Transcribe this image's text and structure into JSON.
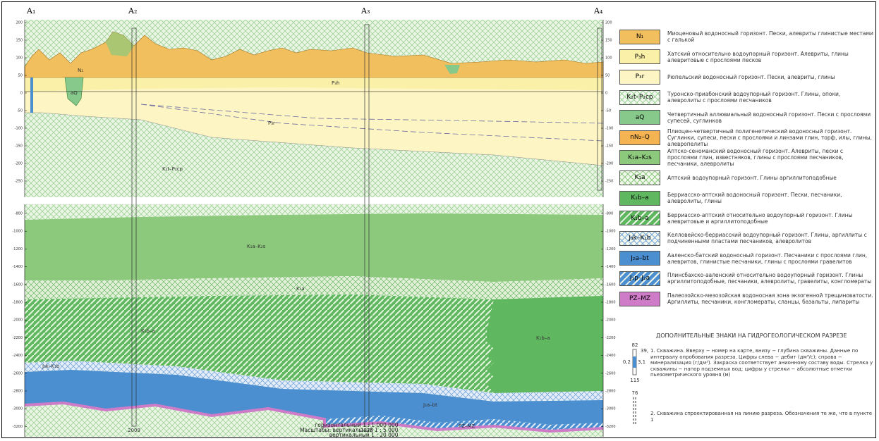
{
  "section": {
    "points": [
      "A₁",
      "A₂",
      "A₃",
      "A₄"
    ],
    "top_ticks": [
      "200",
      "150",
      "100",
      "50",
      "0",
      "-50",
      "-100",
      "-150",
      "-200",
      "-250"
    ],
    "bottom_ticks": [
      "-800",
      "-1000",
      "-1200",
      "-1400",
      "-1600",
      "-1800",
      "-2000",
      "-2200",
      "-2400",
      "-2600",
      "-2800",
      "-3000",
      "-3200"
    ],
    "well_depths": [
      "2009",
      "3275"
    ],
    "scale": [
      "горизонтальный 1 : 1 000 000",
      "Масштабы: вертикальный 1 : 5 000",
      "вертикальный 1 : 20 000"
    ]
  },
  "legend": {
    "items": [
      {
        "code": "N₁",
        "text": "Миоценовый водоносный горизонт. Пески, алевриты глинистые местами с галькой",
        "color": "#f2bf5e",
        "pattern": "solid"
      },
      {
        "code": "P₃h",
        "text": "Хатский относительно водоупорный горизонт. Алевриты, глины алевритовые с прослоями песков",
        "color": "#fbf0a8",
        "pattern": "solid"
      },
      {
        "code": "P₃r",
        "text": "Рюпельский водоносный горизонт. Пески, алевриты, глины",
        "color": "#fdf6c4",
        "pattern": "solid"
      },
      {
        "code": "K₂t–P₂cp",
        "text": "Туронско-приабонский водоупорный горизонт. Глины, опоки, алевролиты с прослоями песчаников",
        "color": "#9fd49a",
        "pattern": "cross"
      },
      {
        "code": "aQ",
        "text": "Четвертичный аллювиальный водоносный горизонт. Пески с прослоями супесей, суглинков",
        "color": "#86c98a",
        "pattern": "solid"
      },
      {
        "code": "nN₂–Q",
        "text": "Плиоцен-четвертичный полигенетический водоносный горизонт. Суглинки, супеси, пески с прослоями и линзами глин, торф, илы, глины, алевропелиты",
        "color": "#f5b452",
        "pattern": "solid"
      },
      {
        "code": "K₁a–K₂s",
        "text": "Аптско-сеноманский водоносный горизонт. Алевриты, пески с прослоями глин, известняков, глины с прослоями песчаников, песчаники, алевролиты",
        "color": "#8cc97c",
        "pattern": "solid"
      },
      {
        "code": "K₁a",
        "text": "Аптский водоупорный горизонт. Глины аргиллитоподобные",
        "color": "#8cc97c",
        "pattern": "cross"
      },
      {
        "code": "K₁b–a",
        "text": "Берриасско-аптский водоносный горизонт. Пески, песчаники, алевролиты, глины",
        "color": "#5fb85f",
        "pattern": "solid"
      },
      {
        "code": "K₁b–a",
        "text": "Берриасско-аптский относительно водоупорный горизонт. Глины алевритовые и аргиллитоподобные",
        "color": "#5fb85f",
        "pattern": "diag"
      },
      {
        "code": "J₃k–K₁b",
        "text": "Келловейско-берриасский водоупорный горизонт. Глины, аргиллиты с подчиненными пластами песчаников, алевролитов",
        "color": "#7aa8d8",
        "pattern": "cross"
      },
      {
        "code": "J₂a–bt",
        "text": "Ааленско-батский водоносный горизонт. Песчаники с прослоями глин, алевритов, глинистые песчаники, глины с прослоями гравелитов",
        "color": "#4b8fd0",
        "pattern": "solid"
      },
      {
        "code": "J₁p–J₂a",
        "text": "Плинсбахско-ааленский относительно водоупорный горизонт. Глины аргиллитоподобные, песчаники, алевролиты, гравелиты, конгломераты",
        "color": "#4b8fd0",
        "pattern": "diag"
      },
      {
        "code": "PZ–MZ",
        "text": "Палеозойско-мезозойская водоносная зона экзогенной трещиноватости. Аргиллиты, песчаники, конгломераты, сланцы, базальты, липариты",
        "color": "#cf7cc8",
        "pattern": "solid"
      }
    ]
  },
  "signs": {
    "title": "ДОПОЛНИТЕЛЬНЫЕ ЗНАКИ НА ГИДРОГЕОЛОГИЧЕСКОМ РАЗРЕЗЕ",
    "sample": {
      "top": "82",
      "arrow": "39,",
      "left": "0,2",
      "right": "3,1",
      "bottom": "115",
      "well2_top": "76"
    },
    "note1": "1. Скважина. Вверху − номер на карте, внизу − глубина скважины. Данные по интервалу опробования разреза. Цифры слева − дебит (дм³/с); справа − минерализация (г/дм³). Закраска соответствует анионному составу воды. Стрелка у скважины − напор подземных вод; цифры у стрелки − абсолютные отметки пьезометрического уровня (м)",
    "note2": "2. Скважина спроектированная на линию разреза. Обозначения те же, что в пункте 1"
  }
}
